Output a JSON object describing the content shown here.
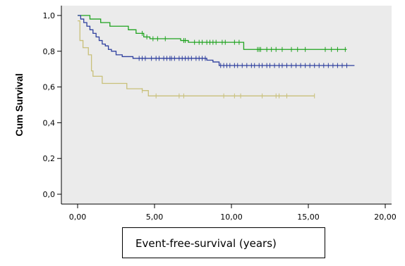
{
  "chart_data": {
    "type": "line",
    "subtype": "kaplan-meier",
    "title": "",
    "xlabel": "Event-free-survival (years)",
    "ylabel": "Cum Survival",
    "xlim": [
      0,
      20
    ],
    "ylim": [
      0,
      1
    ],
    "x_ticks": [
      0,
      5,
      10,
      15,
      20
    ],
    "x_tick_labels": [
      "0,00",
      "5,00",
      "10,00",
      "15,00",
      "20,00"
    ],
    "y_ticks": [
      0,
      0.2,
      0.4,
      0.6,
      0.8,
      1.0
    ],
    "y_tick_labels": [
      "0,0",
      "0,2",
      "0,4",
      "0,6",
      "0,8",
      "1,0"
    ],
    "grid": false,
    "background": "#ebebeb",
    "series": [
      {
        "color": "#1fa31f",
        "steps": [
          [
            0,
            1.0
          ],
          [
            0.8,
            0.98
          ],
          [
            1.5,
            0.96
          ],
          [
            2.1,
            0.94
          ],
          [
            3.3,
            0.92
          ],
          [
            3.8,
            0.9
          ],
          [
            4.3,
            0.88
          ],
          [
            4.7,
            0.87
          ],
          [
            6.7,
            0.86
          ],
          [
            7.2,
            0.85
          ],
          [
            10.8,
            0.81
          ],
          [
            17.5,
            0.81
          ]
        ],
        "censored": [
          4.2,
          4.5,
          4.9,
          5.2,
          5.7,
          6.9,
          7.0,
          7.6,
          7.9,
          8.1,
          8.4,
          8.6,
          8.8,
          9.0,
          9.4,
          9.6,
          10.2,
          10.5,
          11.7,
          11.8,
          11.9,
          12.3,
          12.6,
          12.9,
          13.3,
          13.9,
          14.3,
          14.8,
          16.1,
          16.5,
          16.9,
          17.4
        ]
      },
      {
        "color": "#2e3f9e",
        "steps": [
          [
            0,
            1.0
          ],
          [
            0.2,
            0.98
          ],
          [
            0.4,
            0.96
          ],
          [
            0.6,
            0.94
          ],
          [
            0.8,
            0.92
          ],
          [
            1.0,
            0.9
          ],
          [
            1.2,
            0.88
          ],
          [
            1.4,
            0.86
          ],
          [
            1.6,
            0.84
          ],
          [
            1.8,
            0.83
          ],
          [
            2.0,
            0.81
          ],
          [
            2.2,
            0.8
          ],
          [
            2.5,
            0.78
          ],
          [
            2.9,
            0.77
          ],
          [
            3.6,
            0.76
          ],
          [
            4.3,
            0.76
          ],
          [
            8.4,
            0.75
          ],
          [
            8.8,
            0.74
          ],
          [
            9.2,
            0.72
          ],
          [
            18.0,
            0.72
          ]
        ],
        "censored": [
          4.0,
          4.2,
          4.4,
          4.8,
          5.1,
          5.3,
          5.6,
          5.8,
          6.0,
          6.1,
          6.3,
          6.6,
          6.8,
          7.0,
          7.2,
          7.4,
          7.7,
          7.9,
          8.1,
          8.3,
          9.3,
          9.5,
          9.7,
          9.9,
          10.2,
          10.4,
          10.7,
          11.0,
          11.3,
          11.5,
          11.8,
          12.0,
          12.3,
          12.5,
          12.8,
          13.1,
          13.3,
          13.6,
          13.9,
          14.2,
          14.5,
          14.8,
          15.1,
          15.4,
          15.7,
          16.0,
          16.3,
          16.6,
          16.9,
          17.2,
          17.5
        ]
      },
      {
        "color": "#c9c07a",
        "steps": [
          [
            0,
            0.97
          ],
          [
            0.15,
            0.86
          ],
          [
            0.35,
            0.82
          ],
          [
            0.7,
            0.78
          ],
          [
            0.9,
            0.69
          ],
          [
            1.0,
            0.66
          ],
          [
            1.6,
            0.62
          ],
          [
            3.2,
            0.59
          ],
          [
            4.2,
            0.58
          ],
          [
            4.6,
            0.55
          ],
          [
            15.4,
            0.55
          ]
        ],
        "censored": [
          4.2,
          5.1,
          6.6,
          6.9,
          9.5,
          10.2,
          10.6,
          12.0,
          12.9,
          13.1,
          13.6,
          15.4
        ]
      }
    ]
  }
}
